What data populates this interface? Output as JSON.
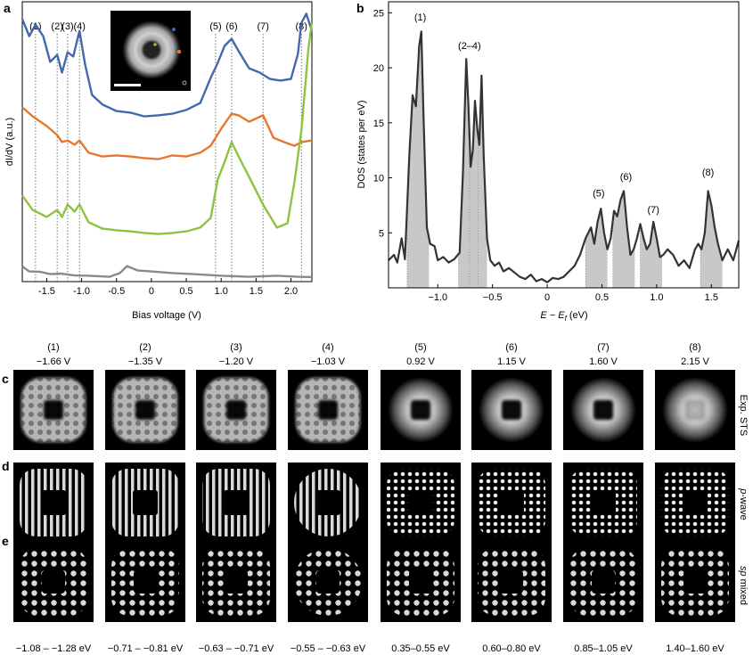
{
  "panel_labels": {
    "a": "a",
    "b": "b",
    "c": "c",
    "d": "d",
    "e": "e"
  },
  "chart_data": [
    {
      "id": "a",
      "type": "line",
      "xlabel": "Bias voltage (V)",
      "ylabel": "dI/dV (a.u.)",
      "xlim": [
        -1.85,
        2.3
      ],
      "xticks": [
        "-1.5",
        "-1.0",
        "-0.5",
        "0",
        "0.5",
        "1.0",
        "1.5",
        "2.0"
      ],
      "xtick_values": [
        -1.5,
        -1.0,
        -0.5,
        0,
        0.5,
        1.0,
        1.5,
        2.0
      ],
      "peak_labels": [
        "(1)",
        "(2)",
        "(3)",
        "(4)",
        "(5)",
        "(6)",
        "(7)",
        "(8)"
      ],
      "peak_positions": [
        -1.66,
        -1.35,
        -1.2,
        -1.03,
        0.92,
        1.15,
        1.6,
        2.15
      ],
      "colors": {
        "blue": "#4467ad",
        "orange": "#e8772e",
        "green": "#8cc43f",
        "gray": "#8a8a8a"
      },
      "series": [
        {
          "color": "#4467ad",
          "x": [
            -1.85,
            -1.75,
            -1.66,
            -1.55,
            -1.45,
            -1.35,
            -1.28,
            -1.2,
            -1.12,
            -1.03,
            -0.95,
            -0.85,
            -0.7,
            -0.5,
            -0.3,
            -0.1,
            0.1,
            0.3,
            0.5,
            0.7,
            0.85,
            0.95,
            1.05,
            1.15,
            1.25,
            1.4,
            1.55,
            1.7,
            1.85,
            2.0,
            2.1,
            2.15,
            2.22,
            2.3
          ],
          "y": [
            0.96,
            0.9,
            0.94,
            0.9,
            0.8,
            0.83,
            0.76,
            0.84,
            0.82,
            0.92,
            0.79,
            0.68,
            0.64,
            0.62,
            0.61,
            0.6,
            0.6,
            0.61,
            0.62,
            0.65,
            0.74,
            0.8,
            0.86,
            0.89,
            0.84,
            0.78,
            0.76,
            0.74,
            0.73,
            0.74,
            0.83,
            0.95,
            0.98,
            0.92
          ]
        },
        {
          "color": "#e8772e",
          "x": [
            -1.85,
            -1.7,
            -1.5,
            -1.35,
            -1.28,
            -1.2,
            -1.1,
            -1.03,
            -0.9,
            -0.7,
            -0.5,
            -0.3,
            -0.1,
            0.1,
            0.3,
            0.5,
            0.7,
            0.85,
            1.0,
            1.15,
            1.25,
            1.4,
            1.6,
            1.75,
            1.9,
            2.05,
            2.15,
            2.3
          ],
          "y": [
            0.63,
            0.6,
            0.56,
            0.53,
            0.5,
            0.51,
            0.49,
            0.51,
            0.46,
            0.45,
            0.45,
            0.45,
            0.44,
            0.44,
            0.45,
            0.45,
            0.46,
            0.49,
            0.55,
            0.61,
            0.6,
            0.58,
            0.6,
            0.52,
            0.5,
            0.49,
            0.5,
            0.51
          ]
        },
        {
          "color": "#8cc43f",
          "x": [
            -1.85,
            -1.7,
            -1.5,
            -1.35,
            -1.28,
            -1.2,
            -1.1,
            -1.03,
            -0.9,
            -0.7,
            -0.5,
            -0.3,
            -0.1,
            0.1,
            0.3,
            0.5,
            0.7,
            0.85,
            0.95,
            1.05,
            1.15,
            1.25,
            1.4,
            1.6,
            1.8,
            1.95,
            2.05,
            2.15,
            2.25,
            2.3
          ],
          "y": [
            0.3,
            0.25,
            0.22,
            0.25,
            0.22,
            0.27,
            0.24,
            0.27,
            0.2,
            0.18,
            0.17,
            0.17,
            0.16,
            0.16,
            0.16,
            0.17,
            0.18,
            0.22,
            0.36,
            0.43,
            0.5,
            0.45,
            0.37,
            0.27,
            0.18,
            0.2,
            0.35,
            0.55,
            0.85,
            0.95
          ]
        },
        {
          "color": "#8a8a8a",
          "x": [
            -1.85,
            -1.75,
            -1.6,
            -1.45,
            -1.3,
            -1.1,
            -0.9,
            -0.6,
            -0.45,
            -0.35,
            -0.2,
            0.0,
            0.3,
            0.6,
            1.0,
            1.4,
            1.8,
            2.1,
            2.3
          ],
          "y": [
            0.035,
            0.02,
            0.015,
            0.01,
            0.008,
            0.005,
            0.0,
            0.0,
            0.01,
            0.04,
            0.02,
            0.02,
            0.01,
            0.01,
            0.0,
            0.0,
            0.0,
            0.0,
            -0.005
          ]
        }
      ]
    },
    {
      "id": "b",
      "type": "area",
      "xlabel": "E − E",
      "xlabel_sub": "f",
      "xlabel_unit": " (eV)",
      "ylabel": "DOS (states per eV)",
      "xlim": [
        -1.45,
        1.75
      ],
      "ylim": [
        0,
        26
      ],
      "xticks": [
        "−1.0",
        "−0.5",
        "0",
        "0.5",
        "1.0",
        "1.5"
      ],
      "xtick_values": [
        -1.0,
        -0.5,
        0,
        0.5,
        1.0,
        1.5
      ],
      "yticks": [
        "5",
        "10",
        "15",
        "20",
        "25"
      ],
      "ytick_values": [
        5,
        10,
        15,
        20,
        25
      ],
      "peak_labels": [
        {
          "text": "(1)",
          "x": -1.16,
          "y": 24.3
        },
        {
          "text": "(2–4)",
          "x": -0.71,
          "y": 21.7
        },
        {
          "text": "(5)",
          "x": 0.47,
          "y": 8.3
        },
        {
          "text": "(6)",
          "x": 0.72,
          "y": 9.8
        },
        {
          "text": "(7)",
          "x": 0.97,
          "y": 6.8
        },
        {
          "text": "(8)",
          "x": 1.47,
          "y": 10.2
        }
      ],
      "shaded_ranges": [
        [
          -1.28,
          -1.08
        ],
        [
          -0.81,
          -0.71
        ],
        [
          -0.71,
          -0.63
        ],
        [
          -0.63,
          -0.55
        ],
        [
          0.35,
          0.55
        ],
        [
          0.6,
          0.8
        ],
        [
          0.85,
          1.05
        ],
        [
          1.4,
          1.6
        ]
      ],
      "x": [
        -1.45,
        -1.4,
        -1.37,
        -1.33,
        -1.3,
        -1.26,
        -1.23,
        -1.2,
        -1.17,
        -1.15,
        -1.13,
        -1.1,
        -1.07,
        -1.03,
        -1.0,
        -0.95,
        -0.9,
        -0.85,
        -0.8,
        -0.77,
        -0.74,
        -0.72,
        -0.7,
        -0.68,
        -0.66,
        -0.64,
        -0.62,
        -0.6,
        -0.58,
        -0.55,
        -0.52,
        -0.48,
        -0.44,
        -0.4,
        -0.35,
        -0.3,
        -0.25,
        -0.2,
        -0.15,
        -0.1,
        -0.05,
        0.0,
        0.05,
        0.1,
        0.15,
        0.2,
        0.25,
        0.3,
        0.35,
        0.4,
        0.43,
        0.46,
        0.49,
        0.52,
        0.55,
        0.58,
        0.61,
        0.64,
        0.67,
        0.7,
        0.73,
        0.76,
        0.79,
        0.82,
        0.85,
        0.88,
        0.91,
        0.94,
        0.97,
        1.0,
        1.03,
        1.06,
        1.1,
        1.15,
        1.2,
        1.25,
        1.3,
        1.35,
        1.38,
        1.41,
        1.44,
        1.47,
        1.5,
        1.53,
        1.56,
        1.6,
        1.65,
        1.7,
        1.75
      ],
      "y": [
        2.5,
        3.0,
        2.3,
        4.5,
        2.6,
        12.0,
        17.5,
        16.5,
        22.0,
        23.3,
        15.5,
        5.5,
        4.0,
        3.8,
        2.5,
        2.8,
        2.3,
        2.6,
        3.2,
        10.5,
        20.8,
        16.5,
        11.0,
        12.5,
        17.0,
        14.5,
        13.0,
        19.3,
        12.0,
        4.5,
        2.5,
        2.0,
        2.3,
        1.5,
        1.8,
        1.4,
        1.0,
        0.8,
        1.2,
        0.6,
        0.8,
        0.5,
        0.9,
        0.8,
        1.0,
        1.5,
        2.0,
        3.0,
        4.5,
        5.5,
        4.0,
        6.0,
        7.2,
        5.0,
        3.5,
        4.5,
        7.0,
        6.5,
        8.0,
        8.8,
        5.5,
        3.0,
        3.5,
        4.5,
        5.8,
        4.5,
        3.5,
        4.0,
        6.0,
        4.5,
        2.8,
        3.0,
        3.5,
        3.0,
        2.0,
        2.5,
        1.8,
        3.5,
        4.0,
        3.5,
        5.0,
        8.8,
        7.5,
        5.5,
        4.0,
        2.5,
        3.5,
        2.5,
        4.3
      ]
    }
  ],
  "grid": {
    "columns": [
      {
        "num": "(1)",
        "voltage": "−1.66 V",
        "energy": "−1.08 – −1.28 eV"
      },
      {
        "num": "(2)",
        "voltage": "−1.35 V",
        "energy": "−0.71 – −0.81 eV"
      },
      {
        "num": "(3)",
        "voltage": "−1.20 V",
        "energy": "−0.63 – −0.71 eV"
      },
      {
        "num": "(4)",
        "voltage": "−1.03 V",
        "energy": "−0.55 – −0.63 eV"
      },
      {
        "num": "(5)",
        "voltage": "0.92 V",
        "energy": "0.35–0.55 eV"
      },
      {
        "num": "(6)",
        "voltage": "1.15 V",
        "energy": "0.60–0.80 eV"
      },
      {
        "num": "(7)",
        "voltage": "1.60 V",
        "energy": "0.85–1.05 eV"
      },
      {
        "num": "(8)",
        "voltage": "2.15 V",
        "energy": "1.40–1.60 eV"
      }
    ],
    "row_labels": [
      {
        "text": "Exp. STS",
        "italic_prefix": "",
        "rest": "Exp. STS"
      },
      {
        "text": "p-wave",
        "italic_prefix": "p",
        "rest": "-wave"
      },
      {
        "text": "sp mixed",
        "italic_prefix": "sp",
        "rest": " mixed"
      }
    ]
  }
}
